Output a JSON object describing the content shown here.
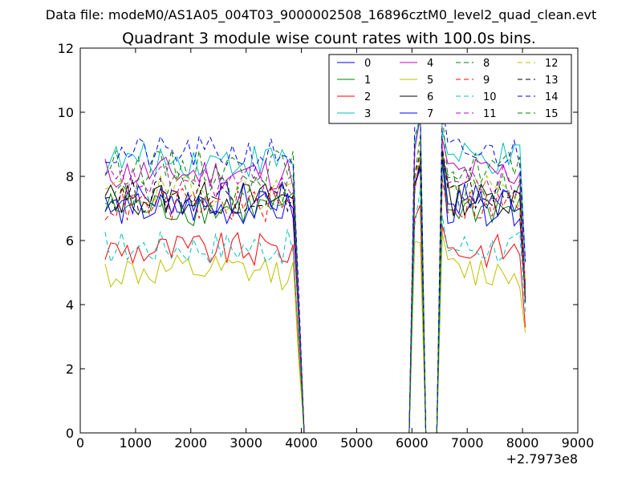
{
  "chart_data": {
    "type": "line",
    "suptitle": "Data file: modeM0/AS1A05_004T03_9000002508_16896cztM0_level2_quad_clean.evt",
    "title": "Quadrant 3 module wise count rates with 100.0s bins.",
    "x_offset_label": "+2.7973e8",
    "xlabel": "",
    "ylabel": "",
    "xlim": [
      0,
      9000
    ],
    "ylim": [
      0,
      12
    ],
    "xticks": [
      "0",
      "1000",
      "2000",
      "3000",
      "4000",
      "5000",
      "6000",
      "7000",
      "8000",
      "9000"
    ],
    "yticks": [
      "0",
      "2",
      "4",
      "6",
      "8",
      "10",
      "12"
    ],
    "legend_position": "top-right",
    "series": [
      {
        "name": "0",
        "color": "#0000ff",
        "dash": false,
        "level": 7.3
      },
      {
        "name": "1",
        "color": "#008000",
        "dash": false,
        "level": 7.0
      },
      {
        "name": "2",
        "color": "#ff0000",
        "dash": false,
        "level": 5.7
      },
      {
        "name": "3",
        "color": "#00bfbf",
        "dash": false,
        "level": 8.5
      },
      {
        "name": "4",
        "color": "#bf00bf",
        "dash": false,
        "level": 8.1
      },
      {
        "name": "5",
        "color": "#bfbf00",
        "dash": false,
        "level": 5.0
      },
      {
        "name": "6",
        "color": "#000000",
        "dash": false,
        "level": 7.3
      },
      {
        "name": "7",
        "color": "#0000ff",
        "dash": false,
        "level": 7.0
      },
      {
        "name": "8",
        "color": "#008000",
        "dash": true,
        "level": 8.3
      },
      {
        "name": "9",
        "color": "#ff0000",
        "dash": true,
        "level": 7.1
      },
      {
        "name": "10",
        "color": "#00bfbf",
        "dash": true,
        "level": 5.8
      },
      {
        "name": "11",
        "color": "#bf00bf",
        "dash": true,
        "level": 7.8
      },
      {
        "name": "12",
        "color": "#bfbf00",
        "dash": true,
        "level": 7.5
      },
      {
        "name": "13",
        "color": "#000000",
        "dash": true,
        "level": 7.4
      },
      {
        "name": "14",
        "color": "#0000ff",
        "dash": true,
        "level": 8.7
      },
      {
        "name": "15",
        "color": "#008000",
        "dash": true,
        "level": 7.6
      }
    ]
  }
}
